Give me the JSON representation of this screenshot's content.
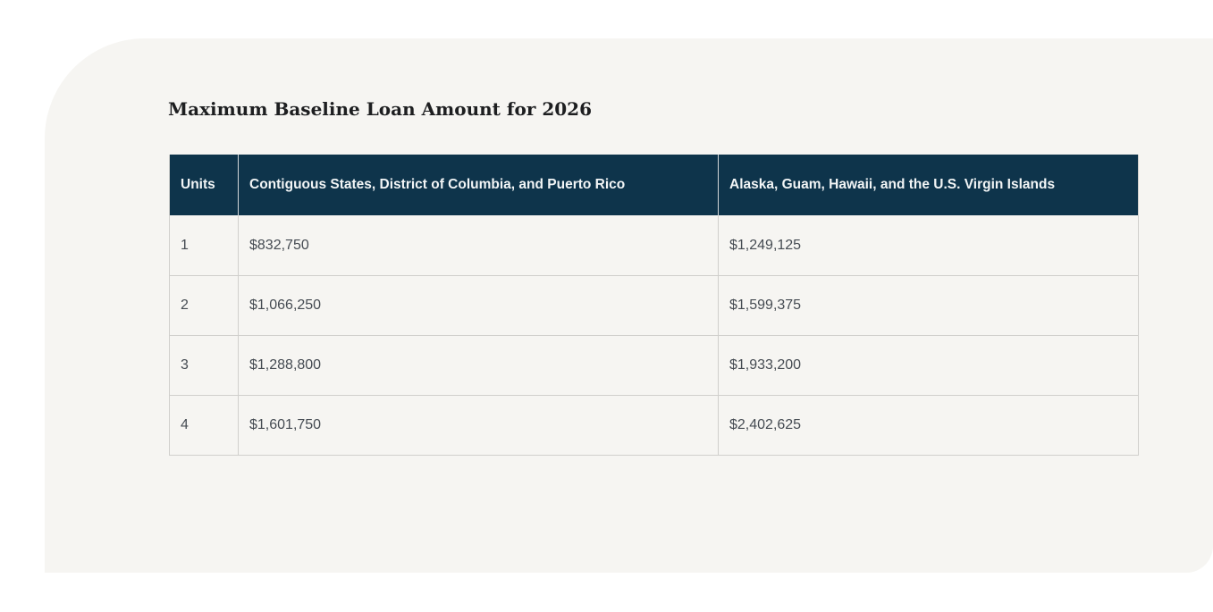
{
  "page": {
    "title": "Maximum Baseline Loan Amount for 2026"
  },
  "table": {
    "columns": [
      "Units",
      "Contiguous States, District of Columbia, and Puerto Rico",
      "Alaska, Guam, Hawaii, and the U.S. Virgin Islands"
    ],
    "rows": [
      {
        "units": "1",
        "contiguous": "$832,750",
        "alaska": "$1,249,125"
      },
      {
        "units": "2",
        "contiguous": "$1,066,250",
        "alaska": "$1,599,375"
      },
      {
        "units": "3",
        "contiguous": "$1,288,800",
        "alaska": "$1,933,200"
      },
      {
        "units": "4",
        "contiguous": "$1,601,750",
        "alaska": "$2,402,625"
      }
    ]
  },
  "colors": {
    "card_bg": "#f6f5f2",
    "header_bg": "#0e344b",
    "header_text": "#f2f5f6",
    "cell_text": "#454b52",
    "title_text": "#1d1e20",
    "border": "#d0cfcc"
  }
}
